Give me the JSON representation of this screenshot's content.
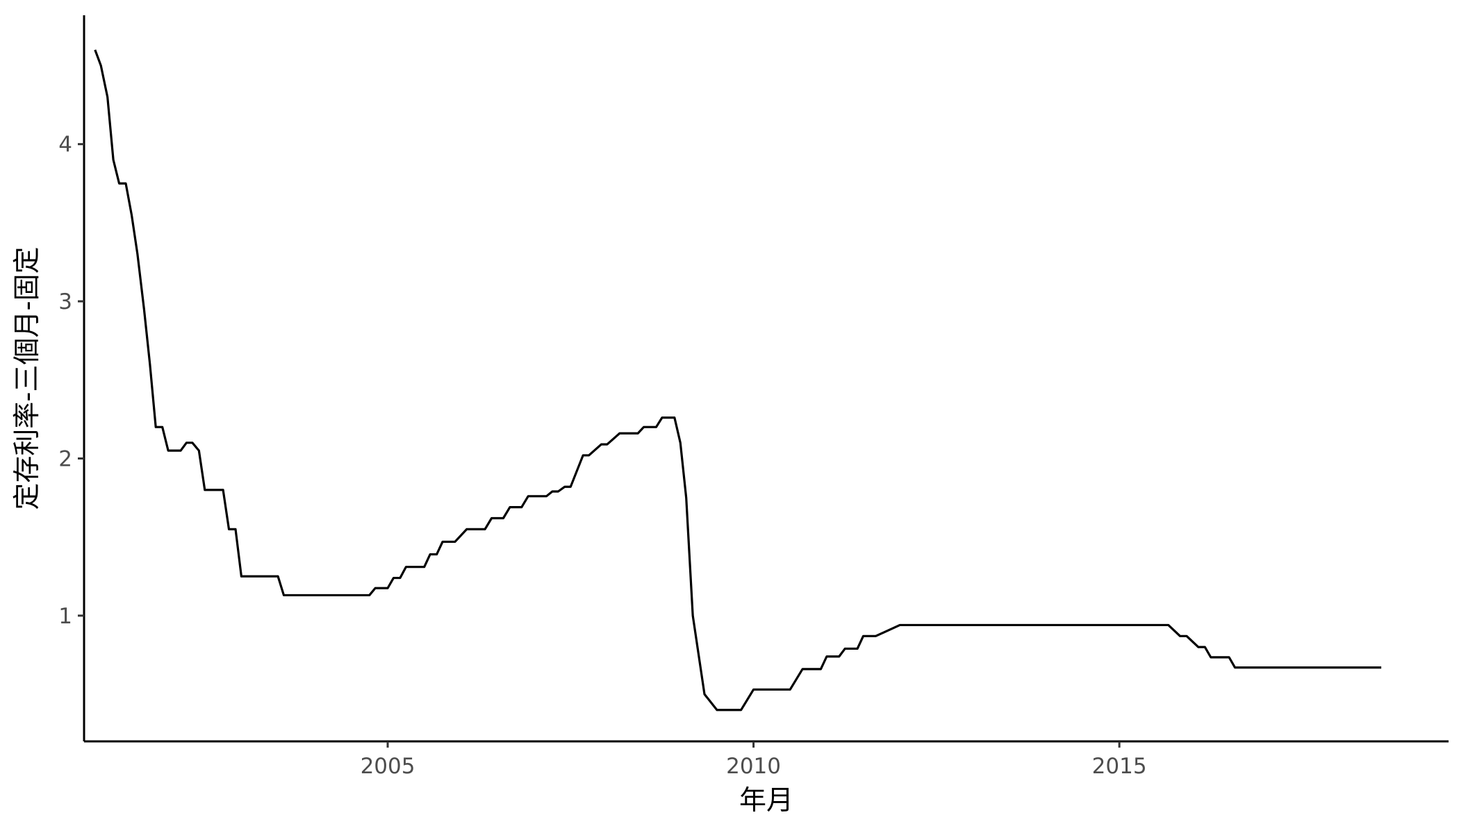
{
  "chart_data": {
    "type": "line",
    "title": "",
    "xlabel": "年月",
    "ylabel": "定存利率-三個月-固定",
    "xlim": [
      2000.85,
      2019.5
    ],
    "ylim": [
      0.2,
      4.82
    ],
    "x_ticks": [
      2005,
      2010,
      2015
    ],
    "y_ticks": [
      1,
      2,
      3,
      4
    ],
    "grid": false,
    "legend": "none",
    "line_color": "#000000",
    "series": [
      {
        "x": [
          2001.0,
          2001.08,
          2001.17,
          2001.25,
          2001.33,
          2001.42,
          2001.5,
          2001.58,
          2001.67,
          2001.75,
          2001.83,
          2001.92,
          2002.0,
          2002.08,
          2002.17,
          2002.25,
          2002.33,
          2002.42,
          2002.5,
          2002.58,
          2002.67,
          2002.75,
          2002.83,
          2002.92,
          2003.0,
          2003.08,
          2003.17,
          2003.25,
          2003.5,
          2003.58,
          2004.0,
          2004.5,
          2004.67,
          2004.75,
          2004.83,
          2005.0,
          2005.08,
          2005.17,
          2005.25,
          2005.5,
          2005.58,
          2005.67,
          2005.75,
          2005.83,
          2005.92,
          2006.08,
          2006.17,
          2006.33,
          2006.42,
          2006.58,
          2006.67,
          2006.83,
          2006.92,
          2007.08,
          2007.17,
          2007.25,
          2007.33,
          2007.42,
          2007.5,
          2007.67,
          2007.75,
          2007.92,
          2008.0,
          2008.17,
          2008.25,
          2008.42,
          2008.5,
          2008.67,
          2008.75,
          2008.83,
          2008.92,
          2009.0,
          2009.08,
          2009.17,
          2009.33,
          2009.5,
          2009.67,
          2009.75,
          2009.83,
          2010.0,
          2010.17,
          2010.33,
          2010.42,
          2010.5,
          2010.67,
          2010.75,
          2010.92,
          2011.0,
          2011.17,
          2011.25,
          2011.42,
          2011.5,
          2011.67,
          2012.0,
          2013.0,
          2014.0,
          2015.0,
          2015.58,
          2015.67,
          2015.83,
          2015.92,
          2016.08,
          2016.17,
          2016.25,
          2016.42,
          2016.5,
          2016.58,
          2017.0,
          2018.0,
          2018.58
        ],
        "y": [
          4.6,
          4.5,
          4.3,
          3.9,
          3.75,
          3.75,
          3.55,
          3.3,
          2.95,
          2.6,
          2.2,
          2.2,
          2.05,
          2.05,
          2.05,
          2.1,
          2.1,
          2.05,
          1.8,
          1.8,
          1.8,
          1.8,
          1.55,
          1.55,
          1.25,
          1.25,
          1.25,
          1.25,
          1.25,
          1.13,
          1.13,
          1.13,
          1.13,
          1.13,
          1.175,
          1.175,
          1.24,
          1.24,
          1.31,
          1.31,
          1.39,
          1.39,
          1.47,
          1.47,
          1.47,
          1.55,
          1.55,
          1.55,
          1.62,
          1.62,
          1.69,
          1.69,
          1.76,
          1.76,
          1.76,
          1.79,
          1.79,
          1.82,
          1.82,
          2.02,
          2.02,
          2.09,
          2.09,
          2.16,
          2.16,
          2.16,
          2.2,
          2.2,
          2.26,
          2.26,
          2.26,
          2.1,
          1.75,
          1.0,
          0.5,
          0.4,
          0.4,
          0.4,
          0.4,
          0.53,
          0.53,
          0.53,
          0.53,
          0.53,
          0.66,
          0.66,
          0.66,
          0.74,
          0.74,
          0.79,
          0.79,
          0.87,
          0.87,
          0.94,
          0.94,
          0.94,
          0.94,
          0.94,
          0.94,
          0.87,
          0.87,
          0.8,
          0.8,
          0.735,
          0.735,
          0.735,
          0.67,
          0.67,
          0.67,
          0.67
        ]
      }
    ]
  }
}
